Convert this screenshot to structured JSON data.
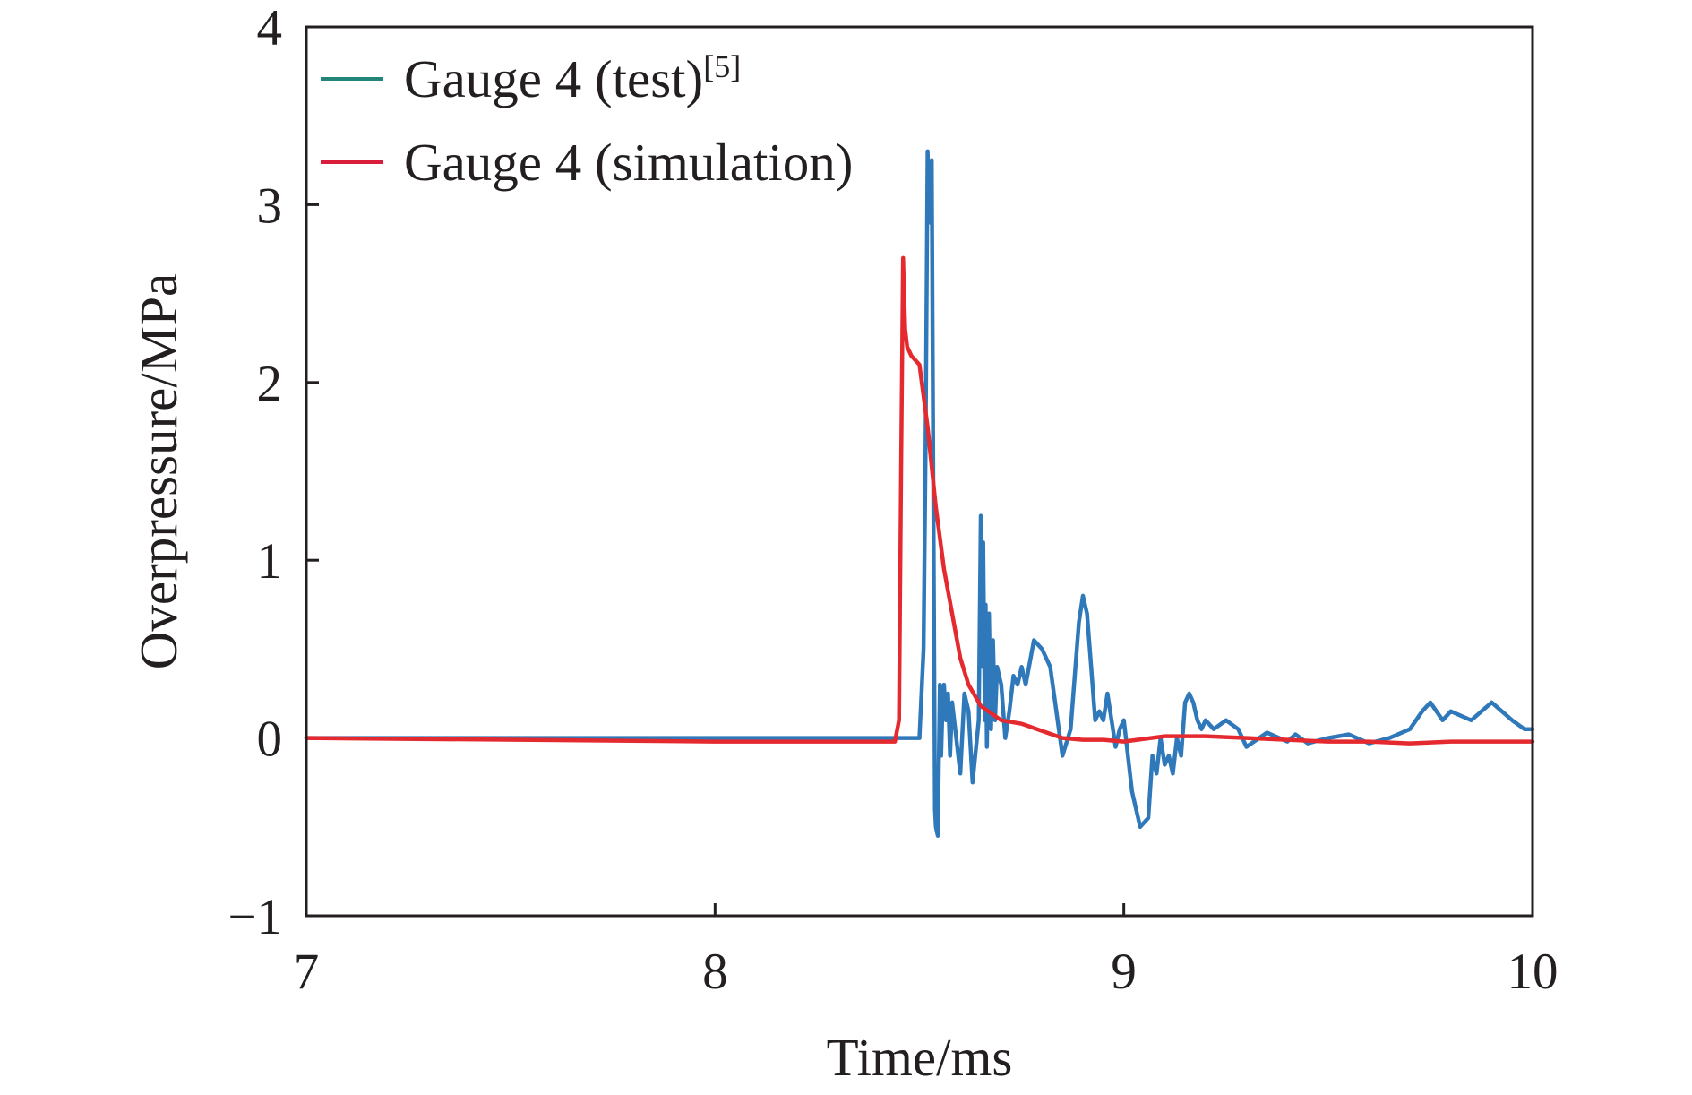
{
  "chart_data": {
    "type": "line",
    "xlabel": "Time/ms",
    "ylabel": "Overpressure/MPa",
    "xlim": [
      7,
      10
    ],
    "ylim": [
      -1,
      4
    ],
    "xticks": [
      7,
      8,
      9,
      10
    ],
    "yticks": [
      -1,
      0,
      1,
      2,
      3,
      4
    ],
    "xtick_labels": [
      "7",
      "8",
      "9",
      "10"
    ],
    "ytick_labels": [
      "−1",
      "0",
      "1",
      "2",
      "3",
      "4"
    ],
    "grid": false,
    "legend": {
      "position": "top-left",
      "entries": [
        {
          "text": "Gauge 4 (test)",
          "superscript": "[5]"
        },
        {
          "text": "Gauge 4 (simulation)",
          "superscript": ""
        }
      ]
    },
    "series": [
      {
        "name": "Gauge 4 (test)",
        "color": "#2f78b9",
        "legend_color": "#21857a",
        "x": [
          7.0,
          7.5,
          8.0,
          8.4,
          8.5,
          8.51,
          8.515,
          8.52,
          8.525,
          8.53,
          8.535,
          8.538,
          8.54,
          8.545,
          8.55,
          8.553,
          8.556,
          8.56,
          8.565,
          8.57,
          8.575,
          8.58,
          8.59,
          8.6,
          8.61,
          8.62,
          8.63,
          8.645,
          8.65,
          8.654,
          8.656,
          8.66,
          8.662,
          8.665,
          8.67,
          8.675,
          8.68,
          8.685,
          8.69,
          8.7,
          8.71,
          8.72,
          8.73,
          8.74,
          8.75,
          8.76,
          8.78,
          8.8,
          8.82,
          8.85,
          8.87,
          8.89,
          8.9,
          8.91,
          8.92,
          8.93,
          8.94,
          8.95,
          8.96,
          8.97,
          8.98,
          8.99,
          9.0,
          9.02,
          9.04,
          9.06,
          9.07,
          9.08,
          9.09,
          9.1,
          9.11,
          9.12,
          9.13,
          9.14,
          9.15,
          9.16,
          9.17,
          9.18,
          9.19,
          9.2,
          9.22,
          9.25,
          9.28,
          9.3,
          9.35,
          9.4,
          9.42,
          9.45,
          9.5,
          9.55,
          9.6,
          9.65,
          9.7,
          9.73,
          9.75,
          9.78,
          9.8,
          9.85,
          9.9,
          9.95,
          9.98,
          10.0
        ],
        "y": [
          0.0,
          0.0,
          0.0,
          0.0,
          0.0,
          0.5,
          1.6,
          3.3,
          2.9,
          3.25,
          0.9,
          -0.4,
          -0.5,
          -0.55,
          0.3,
          -0.1,
          0.15,
          0.3,
          0.1,
          0.25,
          -0.1,
          0.2,
          0.0,
          -0.2,
          0.25,
          0.15,
          -0.25,
          0.1,
          1.25,
          0.4,
          1.1,
          0.1,
          0.75,
          -0.05,
          0.7,
          0.05,
          0.55,
          0.1,
          0.4,
          0.3,
          0.0,
          0.15,
          0.35,
          0.3,
          0.4,
          0.3,
          0.55,
          0.5,
          0.4,
          -0.1,
          0.05,
          0.65,
          0.8,
          0.7,
          0.4,
          0.1,
          0.15,
          0.1,
          0.25,
          0.1,
          -0.05,
          0.05,
          0.1,
          -0.3,
          -0.5,
          -0.45,
          -0.1,
          -0.2,
          0.0,
          -0.15,
          -0.1,
          -0.2,
          0.0,
          -0.1,
          0.2,
          0.25,
          0.2,
          0.1,
          0.05,
          0.1,
          0.05,
          0.1,
          0.05,
          -0.05,
          0.03,
          -0.02,
          0.02,
          -0.03,
          0.0,
          0.02,
          -0.03,
          0.0,
          0.05,
          0.15,
          0.2,
          0.1,
          0.15,
          0.1,
          0.2,
          0.1,
          0.05,
          0.05
        ]
      },
      {
        "name": "Gauge 4 (simulation)",
        "color": "#e4292f",
        "legend_color": "#d81e3a",
        "x": [
          7.0,
          8.0,
          8.44,
          8.45,
          8.455,
          8.46,
          8.465,
          8.47,
          8.48,
          8.5,
          8.52,
          8.54,
          8.56,
          8.58,
          8.6,
          8.62,
          8.65,
          8.7,
          8.75,
          8.8,
          8.85,
          8.9,
          8.95,
          9.0,
          9.1,
          9.2,
          9.3,
          9.4,
          9.5,
          9.6,
          9.7,
          9.8,
          9.9,
          10.0
        ],
        "y": [
          0.0,
          -0.02,
          -0.02,
          0.1,
          1.5,
          2.7,
          2.3,
          2.2,
          2.15,
          2.1,
          1.75,
          1.3,
          0.95,
          0.7,
          0.45,
          0.3,
          0.18,
          0.1,
          0.08,
          0.04,
          0.0,
          -0.01,
          -0.01,
          -0.02,
          0.01,
          0.01,
          0.0,
          -0.01,
          -0.02,
          -0.02,
          -0.03,
          -0.02,
          -0.02,
          -0.02
        ]
      }
    ]
  }
}
